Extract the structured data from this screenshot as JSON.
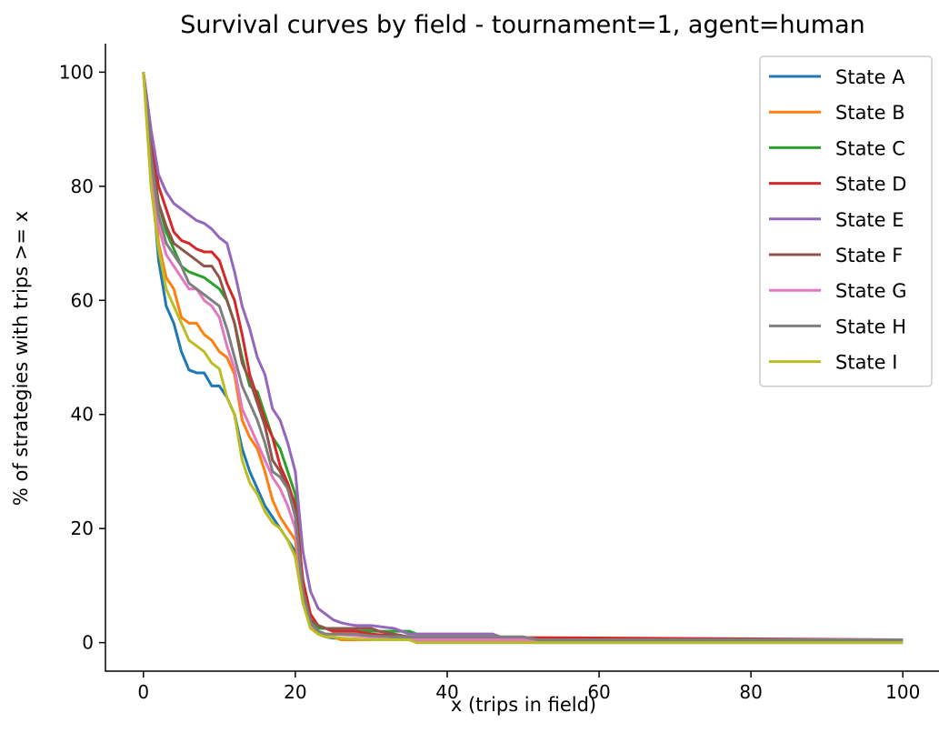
{
  "chart_data": {
    "type": "line",
    "title": "Survival curves by field - tournament=1, agent=human",
    "xlabel": "x (trips in field)",
    "ylabel": "% of strategies with trips >= x",
    "xlim": [
      -5,
      105
    ],
    "ylim": [
      -5,
      105
    ],
    "xticks": [
      0,
      20,
      40,
      60,
      80,
      100
    ],
    "yticks": [
      0,
      20,
      40,
      60,
      80,
      100
    ],
    "grid": false,
    "legend_position": "top-right",
    "series": [
      {
        "name": "State A",
        "color": "#1f77b4",
        "points": [
          [
            0,
            100
          ],
          [
            1,
            83
          ],
          [
            2,
            67
          ],
          [
            3,
            59
          ],
          [
            4,
            56
          ],
          [
            5,
            51
          ],
          [
            6,
            47.8
          ],
          [
            7,
            47.3
          ],
          [
            8,
            47.3
          ],
          [
            9,
            45
          ],
          [
            10,
            45
          ],
          [
            11,
            43
          ],
          [
            12,
            40
          ],
          [
            13,
            34
          ],
          [
            14,
            30
          ],
          [
            15,
            27
          ],
          [
            16,
            24
          ],
          [
            17,
            22
          ],
          [
            18,
            20
          ],
          [
            19,
            18
          ],
          [
            20,
            16
          ],
          [
            21,
            7
          ],
          [
            22,
            3
          ],
          [
            23,
            1.5
          ],
          [
            24,
            1
          ],
          [
            25,
            0.8
          ],
          [
            28,
            0.5
          ],
          [
            35,
            0.5
          ],
          [
            36,
            0
          ],
          [
            100,
            0
          ]
        ]
      },
      {
        "name": "State B",
        "color": "#ff7f0e",
        "points": [
          [
            0,
            100
          ],
          [
            1,
            84
          ],
          [
            2,
            70
          ],
          [
            3,
            64
          ],
          [
            4,
            62
          ],
          [
            5,
            57
          ],
          [
            6,
            56
          ],
          [
            7,
            56
          ],
          [
            8,
            54
          ],
          [
            9,
            53
          ],
          [
            10,
            51
          ],
          [
            11,
            50
          ],
          [
            12,
            47
          ],
          [
            13,
            39
          ],
          [
            14,
            36
          ],
          [
            15,
            34
          ],
          [
            16,
            30
          ],
          [
            17,
            25
          ],
          [
            18,
            22
          ],
          [
            19,
            20
          ],
          [
            20,
            18
          ],
          [
            21,
            7
          ],
          [
            22,
            3.5
          ],
          [
            23,
            2
          ],
          [
            24,
            1
          ],
          [
            25,
            1
          ],
          [
            26,
            0.5
          ],
          [
            30,
            0.5
          ],
          [
            100,
            0.5
          ]
        ]
      },
      {
        "name": "State C",
        "color": "#2ca02c",
        "points": [
          [
            0,
            100
          ],
          [
            1,
            87
          ],
          [
            2,
            77
          ],
          [
            3,
            72
          ],
          [
            4,
            69
          ],
          [
            5,
            66
          ],
          [
            6,
            65
          ],
          [
            7,
            64.5
          ],
          [
            8,
            64
          ],
          [
            9,
            63
          ],
          [
            10,
            62
          ],
          [
            11,
            60
          ],
          [
            12,
            56
          ],
          [
            13,
            50
          ],
          [
            14,
            45
          ],
          [
            15,
            44
          ],
          [
            16,
            40
          ],
          [
            17,
            36
          ],
          [
            18,
            34
          ],
          [
            19,
            30
          ],
          [
            20,
            26
          ],
          [
            21,
            10
          ],
          [
            22,
            4
          ],
          [
            23,
            2.5
          ],
          [
            24,
            2.5
          ],
          [
            25,
            2
          ],
          [
            26,
            2
          ],
          [
            28,
            2
          ],
          [
            30,
            2
          ],
          [
            34,
            2
          ],
          [
            35,
            2
          ],
          [
            36,
            1.5
          ],
          [
            46,
            1.5
          ],
          [
            47,
            1
          ],
          [
            48,
            0.5
          ],
          [
            100,
            0.5
          ]
        ]
      },
      {
        "name": "State D",
        "color": "#d62728",
        "points": [
          [
            0,
            100
          ],
          [
            1,
            88
          ],
          [
            2,
            80
          ],
          [
            3,
            76
          ],
          [
            4,
            72
          ],
          [
            5,
            70.5
          ],
          [
            6,
            70
          ],
          [
            7,
            69
          ],
          [
            8,
            68.5
          ],
          [
            9,
            68.5
          ],
          [
            10,
            67
          ],
          [
            11,
            63
          ],
          [
            12,
            60
          ],
          [
            13,
            54
          ],
          [
            14,
            47
          ],
          [
            15,
            43
          ],
          [
            16,
            39
          ],
          [
            17,
            36
          ],
          [
            18,
            31
          ],
          [
            19,
            28
          ],
          [
            20,
            24
          ],
          [
            21,
            11
          ],
          [
            22,
            5
          ],
          [
            23,
            3
          ],
          [
            24,
            2.5
          ],
          [
            25,
            2
          ],
          [
            28,
            2
          ],
          [
            30,
            1.5
          ],
          [
            35,
            1
          ],
          [
            100,
            0.5
          ]
        ]
      },
      {
        "name": "State E",
        "color": "#9467bd",
        "points": [
          [
            0,
            100
          ],
          [
            1,
            90
          ],
          [
            2,
            82
          ],
          [
            3,
            79
          ],
          [
            4,
            77
          ],
          [
            5,
            76
          ],
          [
            6,
            75
          ],
          [
            7,
            74
          ],
          [
            8,
            73.5
          ],
          [
            9,
            72.5
          ],
          [
            10,
            71
          ],
          [
            11,
            70
          ],
          [
            12,
            65
          ],
          [
            13,
            59
          ],
          [
            14,
            55
          ],
          [
            15,
            50
          ],
          [
            16,
            47
          ],
          [
            17,
            41
          ],
          [
            18,
            39
          ],
          [
            19,
            35
          ],
          [
            20,
            30
          ],
          [
            21,
            16
          ],
          [
            22,
            9
          ],
          [
            23,
            6
          ],
          [
            24,
            5
          ],
          [
            25,
            4
          ],
          [
            26,
            3.5
          ],
          [
            27,
            3.2
          ],
          [
            28,
            3
          ],
          [
            30,
            3
          ],
          [
            33,
            2.5
          ],
          [
            34,
            2
          ],
          [
            35,
            1.5
          ],
          [
            40,
            1.5
          ],
          [
            46,
            1.5
          ],
          [
            47,
            1
          ],
          [
            50,
            1
          ],
          [
            52,
            0.5
          ],
          [
            100,
            0.5
          ]
        ]
      },
      {
        "name": "State F",
        "color": "#8c564b",
        "points": [
          [
            0,
            100
          ],
          [
            1,
            86
          ],
          [
            2,
            77
          ],
          [
            3,
            73
          ],
          [
            4,
            70
          ],
          [
            5,
            69
          ],
          [
            6,
            68
          ],
          [
            7,
            67
          ],
          [
            8,
            66
          ],
          [
            9,
            66
          ],
          [
            10,
            64
          ],
          [
            11,
            60
          ],
          [
            12,
            56
          ],
          [
            13,
            49
          ],
          [
            14,
            46
          ],
          [
            15,
            42
          ],
          [
            16,
            38
          ],
          [
            17,
            32
          ],
          [
            18,
            30
          ],
          [
            19,
            27
          ],
          [
            20,
            23
          ],
          [
            21,
            9
          ],
          [
            22,
            4
          ],
          [
            23,
            3
          ],
          [
            24,
            2.5
          ],
          [
            25,
            2.5
          ],
          [
            30,
            2.5
          ],
          [
            31,
            2
          ],
          [
            35,
            1
          ],
          [
            36,
            1
          ],
          [
            40,
            1
          ],
          [
            48,
            1
          ],
          [
            50,
            1
          ],
          [
            51,
            0.5
          ],
          [
            100,
            0.5
          ]
        ]
      },
      {
        "name": "State G",
        "color": "#e377c2",
        "points": [
          [
            0,
            100
          ],
          [
            1,
            84
          ],
          [
            2,
            73
          ],
          [
            3,
            68
          ],
          [
            4,
            66
          ],
          [
            5,
            64
          ],
          [
            6,
            62
          ],
          [
            7,
            62
          ],
          [
            8,
            60
          ],
          [
            9,
            59
          ],
          [
            10,
            57
          ],
          [
            11,
            52
          ],
          [
            12,
            48
          ],
          [
            13,
            41
          ],
          [
            14,
            38
          ],
          [
            15,
            35
          ],
          [
            16,
            32
          ],
          [
            17,
            29
          ],
          [
            18,
            27
          ],
          [
            19,
            24
          ],
          [
            20,
            20
          ],
          [
            21,
            8
          ],
          [
            22,
            3
          ],
          [
            23,
            2
          ],
          [
            24,
            1.5
          ],
          [
            25,
            1.5
          ],
          [
            28,
            1.2
          ],
          [
            30,
            1
          ],
          [
            34,
            1
          ],
          [
            35,
            0.5
          ],
          [
            100,
            0.5
          ]
        ]
      },
      {
        "name": "State H",
        "color": "#7f7f7f",
        "points": [
          [
            0,
            100
          ],
          [
            1,
            85
          ],
          [
            2,
            75
          ],
          [
            3,
            70
          ],
          [
            4,
            68
          ],
          [
            5,
            66
          ],
          [
            6,
            63
          ],
          [
            7,
            62
          ],
          [
            8,
            61
          ],
          [
            9,
            60
          ],
          [
            10,
            59
          ],
          [
            11,
            55
          ],
          [
            12,
            50
          ],
          [
            13,
            45
          ],
          [
            14,
            42
          ],
          [
            15,
            39
          ],
          [
            16,
            35
          ],
          [
            17,
            30
          ],
          [
            18,
            29
          ],
          [
            19,
            27
          ],
          [
            20,
            22
          ],
          [
            21,
            9
          ],
          [
            22,
            3.5
          ],
          [
            23,
            2
          ],
          [
            24,
            1.5
          ],
          [
            25,
            1.5
          ],
          [
            28,
            1.5
          ],
          [
            30,
            1.2
          ],
          [
            33,
            1
          ],
          [
            35,
            1
          ],
          [
            40,
            1
          ],
          [
            50,
            1
          ],
          [
            52,
            0.5
          ],
          [
            100,
            0.5
          ]
        ]
      },
      {
        "name": "State I",
        "color": "#bcbd22",
        "points": [
          [
            0,
            100
          ],
          [
            1,
            80
          ],
          [
            2,
            69
          ],
          [
            3,
            62
          ],
          [
            4,
            59
          ],
          [
            5,
            56
          ],
          [
            6,
            53
          ],
          [
            7,
            52
          ],
          [
            8,
            51
          ],
          [
            9,
            49
          ],
          [
            10,
            48
          ],
          [
            11,
            43
          ],
          [
            12,
            40
          ],
          [
            13,
            32
          ],
          [
            14,
            28
          ],
          [
            15,
            26
          ],
          [
            16,
            23
          ],
          [
            17,
            21
          ],
          [
            18,
            20
          ],
          [
            19,
            18
          ],
          [
            20,
            15
          ],
          [
            21,
            7
          ],
          [
            22,
            2.5
          ],
          [
            23,
            1.5
          ],
          [
            24,
            1
          ],
          [
            25,
            1
          ],
          [
            26,
            0.8
          ],
          [
            30,
            0.5
          ],
          [
            35,
            0.5
          ],
          [
            36,
            0
          ],
          [
            100,
            0
          ]
        ]
      }
    ]
  }
}
